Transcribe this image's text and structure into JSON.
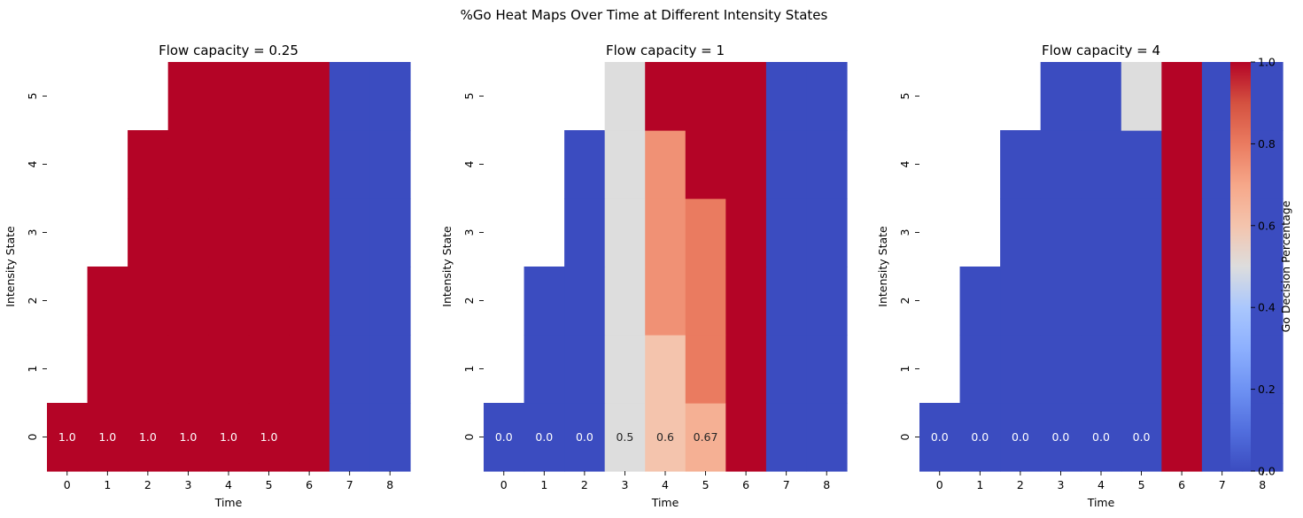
{
  "suptitle": "%Go Heat Maps Over Time at Different Intensity States",
  "colorbar": {
    "label": "Go Decision Percentage",
    "ticks": [
      "0.0",
      "0.2",
      "0.4",
      "0.6",
      "0.8",
      "1.0"
    ],
    "range": [
      0,
      1
    ],
    "colormap": "coolwarm"
  },
  "chart_data": [
    {
      "type": "heatmap",
      "title": "Flow capacity = 0.25",
      "xlabel": "Time",
      "ylabel": "Intensity State",
      "x_categories": [
        "0",
        "1",
        "2",
        "3",
        "4",
        "5",
        "6",
        "7",
        "8"
      ],
      "y_categories": [
        "0",
        "1",
        "2",
        "3",
        "4",
        "5"
      ],
      "values": [
        [
          1,
          1,
          1,
          1,
          1,
          1,
          1,
          0,
          0
        ],
        [
          null,
          1,
          1,
          1,
          1,
          1,
          1,
          0,
          0
        ],
        [
          null,
          1,
          1,
          1,
          1,
          1,
          1,
          0,
          0
        ],
        [
          null,
          null,
          1,
          1,
          1,
          1,
          1,
          0,
          0
        ],
        [
          null,
          null,
          1,
          1,
          1,
          1,
          1,
          0,
          0
        ],
        [
          null,
          null,
          null,
          1,
          1,
          1,
          1,
          0,
          0
        ]
      ],
      "annotations": [
        {
          "x": 0,
          "y": 0,
          "text": "1.0"
        },
        {
          "x": 1,
          "y": 0,
          "text": "1.0"
        },
        {
          "x": 2,
          "y": 0,
          "text": "1.0"
        },
        {
          "x": 3,
          "y": 0,
          "text": "1.0"
        },
        {
          "x": 4,
          "y": 0,
          "text": "1.0"
        },
        {
          "x": 5,
          "y": 0,
          "text": "1.0"
        }
      ]
    },
    {
      "type": "heatmap",
      "title": "Flow capacity = 1",
      "xlabel": "Time",
      "ylabel": "Intensity State",
      "x_categories": [
        "0",
        "1",
        "2",
        "3",
        "4",
        "5",
        "6",
        "7",
        "8"
      ],
      "y_categories": [
        "0",
        "1",
        "2",
        "3",
        "4",
        "5"
      ],
      "values": [
        [
          0,
          0,
          0,
          0.5,
          0.6,
          0.67,
          1,
          0,
          0
        ],
        [
          null,
          0,
          0,
          0.5,
          0.6,
          0.8,
          1,
          0,
          0
        ],
        [
          null,
          0,
          0,
          0.5,
          0.75,
          0.8,
          1,
          0,
          0
        ],
        [
          null,
          null,
          0,
          0.5,
          0.75,
          0.8,
          1,
          0,
          0
        ],
        [
          null,
          null,
          0,
          0.5,
          0.75,
          1,
          1,
          0,
          0
        ],
        [
          null,
          null,
          null,
          0.5,
          1,
          1,
          1,
          0,
          0
        ]
      ],
      "annotations": [
        {
          "x": 0,
          "y": 0,
          "text": "0.0"
        },
        {
          "x": 1,
          "y": 0,
          "text": "0.0"
        },
        {
          "x": 2,
          "y": 0,
          "text": "0.0"
        },
        {
          "x": 3,
          "y": 0,
          "text": "0.5"
        },
        {
          "x": 4,
          "y": 0,
          "text": "0.6"
        },
        {
          "x": 5,
          "y": 0,
          "text": "0.67"
        }
      ]
    },
    {
      "type": "heatmap",
      "title": "Flow capacity = 4",
      "xlabel": "Time",
      "ylabel": "Intensity State",
      "x_categories": [
        "0",
        "1",
        "2",
        "3",
        "4",
        "5",
        "6",
        "7",
        "8"
      ],
      "y_categories": [
        "0",
        "1",
        "2",
        "3",
        "4",
        "5"
      ],
      "values": [
        [
          0,
          0,
          0,
          0,
          0,
          0,
          1,
          0,
          0
        ],
        [
          null,
          0,
          0,
          0,
          0,
          0,
          1,
          0,
          0
        ],
        [
          null,
          0,
          0,
          0,
          0,
          0,
          1,
          0,
          0
        ],
        [
          null,
          null,
          0,
          0,
          0,
          0,
          1,
          0,
          0
        ],
        [
          null,
          null,
          0,
          0,
          0,
          0,
          1,
          0,
          0
        ],
        [
          null,
          null,
          null,
          0,
          0,
          0.5,
          1,
          0,
          0
        ]
      ],
      "annotations": [
        {
          "x": 0,
          "y": 0,
          "text": "0.0"
        },
        {
          "x": 1,
          "y": 0,
          "text": "0.0"
        },
        {
          "x": 2,
          "y": 0,
          "text": "0.0"
        },
        {
          "x": 3,
          "y": 0,
          "text": "0.0"
        },
        {
          "x": 4,
          "y": 0,
          "text": "0.0"
        },
        {
          "x": 5,
          "y": 0,
          "text": "0.0"
        }
      ]
    }
  ]
}
